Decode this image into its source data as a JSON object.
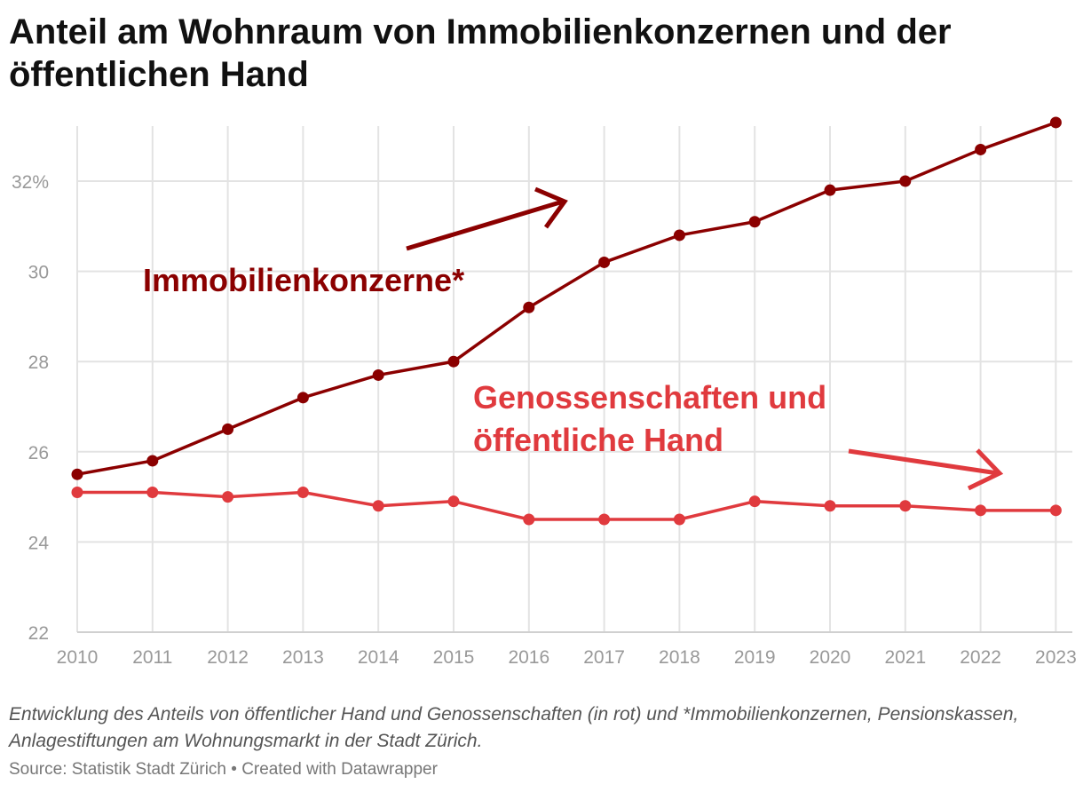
{
  "title": "Anteil am Wohnraum von Immobilienkonzernen und der öffentlichen Hand",
  "note": "Entwicklung des Anteils von öffentlicher Hand und Genossenschaften (in rot) und *Immobilienkonzernen, Pensionskassen, Anlagestiftungen am Wohnungsmarkt in der Stadt Zürich.",
  "source": "Source: Statistik Stadt Zürich • Created with Datawrapper",
  "colors": {
    "immobilien": "#8b0000",
    "genossenschaften": "#e03a3e",
    "grid": "#e3e3e3"
  },
  "chart_data": {
    "type": "line",
    "x": [
      "2010",
      "2011",
      "2012",
      "2013",
      "2014",
      "2015",
      "2016",
      "2017",
      "2018",
      "2019",
      "2020",
      "2021",
      "2022",
      "2023"
    ],
    "y_ticks": [
      "22",
      "24",
      "26",
      "28",
      "30",
      "32%"
    ],
    "ylim": [
      22,
      33.3
    ],
    "grid": true,
    "series": [
      {
        "name": "Immobilienkonzerne*",
        "values": [
          25.5,
          25.8,
          26.5,
          27.2,
          27.7,
          28.0,
          29.2,
          30.2,
          30.8,
          31.1,
          31.8,
          32.0,
          32.7,
          33.3
        ]
      },
      {
        "name": "Genossenschaften und öffentliche Hand",
        "name_lines": [
          "Genossenschaften und",
          "öffentliche Hand"
        ],
        "values": [
          25.1,
          25.1,
          25.0,
          25.1,
          24.8,
          24.9,
          24.5,
          24.5,
          24.5,
          24.9,
          24.8,
          24.8,
          24.7,
          24.7
        ]
      }
    ]
  }
}
